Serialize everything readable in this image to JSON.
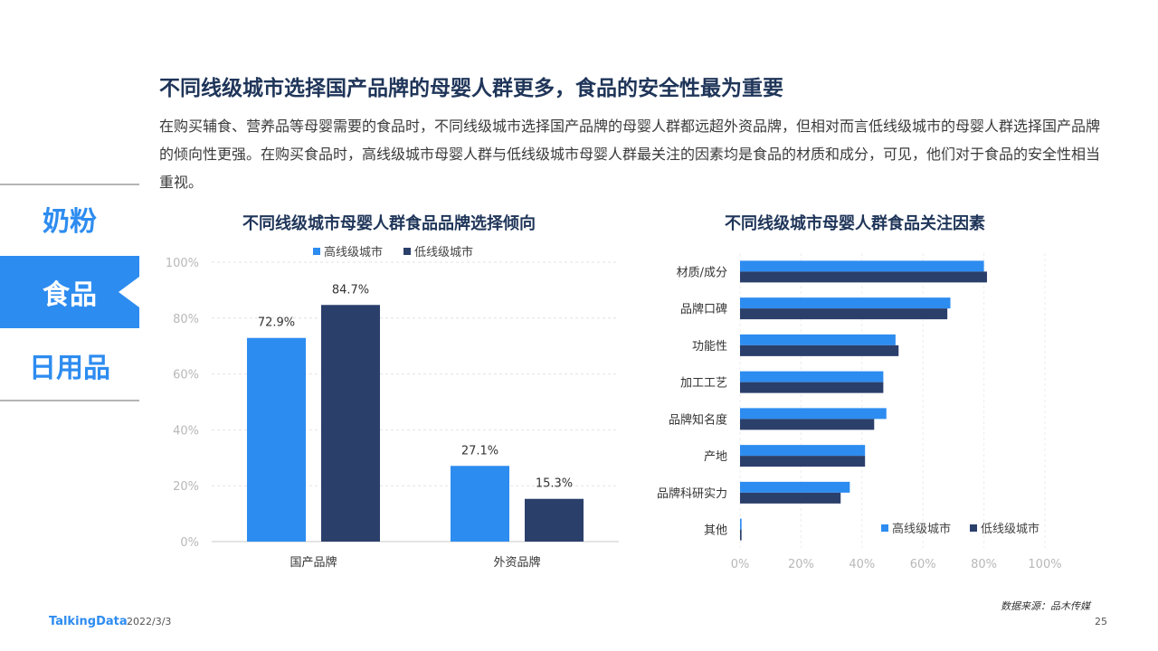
{
  "header": {
    "title": "不同线级城市选择国产品牌的母婴人群更多，食品的安全性最为重要",
    "description": "在购买辅食、营养品等母婴需要的食品时，不同线级城市选择国产品牌的母婴人群都远超外资品牌，但相对而言低线级城市的母婴人群选择国产品牌的倾向性更强。在购买食品时，高线级城市母婴人群与低线级城市母婴人群最关注的因素均是食品的材质和成分，可见，他们对于食品的安全性相当重视。"
  },
  "nav": {
    "items": [
      {
        "label": "奶粉",
        "active": false
      },
      {
        "label": "食品",
        "active": true
      },
      {
        "label": "日用品",
        "active": false
      }
    ]
  },
  "colors": {
    "high": "#2d8cf0",
    "low": "#2b3f6b",
    "accent": "#2d8cf0",
    "title": "#1f3559"
  },
  "chart_data": [
    {
      "type": "bar",
      "title": "不同线级城市母婴人群食品品牌选择倾向",
      "categories": [
        "国产品牌",
        "外资品牌"
      ],
      "series": [
        {
          "name": "高线级城市",
          "values": [
            72.9,
            27.1
          ],
          "labels": [
            "72.9%",
            "27.1%"
          ]
        },
        {
          "name": "低线级城市",
          "values": [
            84.7,
            15.3
          ],
          "labels": [
            "84.7%",
            "15.3%"
          ]
        }
      ],
      "ylim": [
        0,
        100
      ],
      "yticks": [
        "0%",
        "20%",
        "40%",
        "60%",
        "80%",
        "100%"
      ],
      "grid": true,
      "legend": "top"
    },
    {
      "type": "bar",
      "orientation": "horizontal",
      "title": "不同线级城市母婴人群食品关注因素",
      "categories": [
        "材质/成分",
        "品牌口碑",
        "功能性",
        "加工工艺",
        "品牌知名度",
        "产地",
        "品牌科研实力",
        "其他"
      ],
      "series": [
        {
          "name": "高线级城市",
          "values": [
            80,
            69,
            51,
            47,
            48,
            41,
            36,
            0.5
          ]
        },
        {
          "name": "低线级城市",
          "values": [
            81,
            68,
            52,
            47,
            44,
            41,
            33,
            0.5
          ]
        }
      ],
      "xlim": [
        0,
        100
      ],
      "xticks": [
        "0%",
        "20%",
        "40%",
        "60%",
        "80%",
        "100%"
      ],
      "grid": true,
      "legend": "bottom-right"
    }
  ],
  "footer": {
    "source": "数据来源：品木传媒",
    "logo": "TalkingData",
    "date": "2022/3/3",
    "page": "25"
  }
}
